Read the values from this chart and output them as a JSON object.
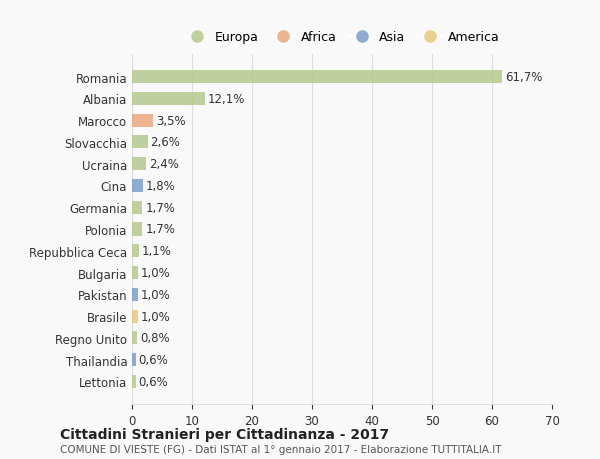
{
  "countries": [
    "Romania",
    "Albania",
    "Marocco",
    "Slovacchia",
    "Ucraina",
    "Cina",
    "Germania",
    "Polonia",
    "Repubblica Ceca",
    "Bulgaria",
    "Pakistan",
    "Brasile",
    "Regno Unito",
    "Thailandia",
    "Lettonia"
  ],
  "values": [
    61.7,
    12.1,
    3.5,
    2.6,
    2.4,
    1.8,
    1.7,
    1.7,
    1.1,
    1.0,
    1.0,
    1.0,
    0.8,
    0.6,
    0.6
  ],
  "labels": [
    "61,7%",
    "12,1%",
    "3,5%",
    "2,6%",
    "2,4%",
    "1,8%",
    "1,7%",
    "1,7%",
    "1,1%",
    "1,0%",
    "1,0%",
    "1,0%",
    "0,8%",
    "0,6%",
    "0,6%"
  ],
  "regions": [
    "Europa",
    "Europa",
    "Africa",
    "Europa",
    "Europa",
    "Asia",
    "Europa",
    "Europa",
    "Europa",
    "Europa",
    "Asia",
    "America",
    "Europa",
    "Asia",
    "Europa"
  ],
  "colors": {
    "Europa": "#b5c98e",
    "Africa": "#e8a97e",
    "Asia": "#7b9fc7",
    "America": "#e8c97e"
  },
  "xlim": [
    0,
    70
  ],
  "xticks": [
    0,
    10,
    20,
    30,
    40,
    50,
    60,
    70
  ],
  "title": "Cittadini Stranieri per Cittadinanza - 2017",
  "subtitle": "COMUNE DI VIESTE (FG) - Dati ISTAT al 1° gennaio 2017 - Elaborazione TUTTITALIA.IT",
  "background_color": "#f9f9f9",
  "grid_color": "#dddddd",
  "legend_order": [
    "Europa",
    "Africa",
    "Asia",
    "America"
  ]
}
